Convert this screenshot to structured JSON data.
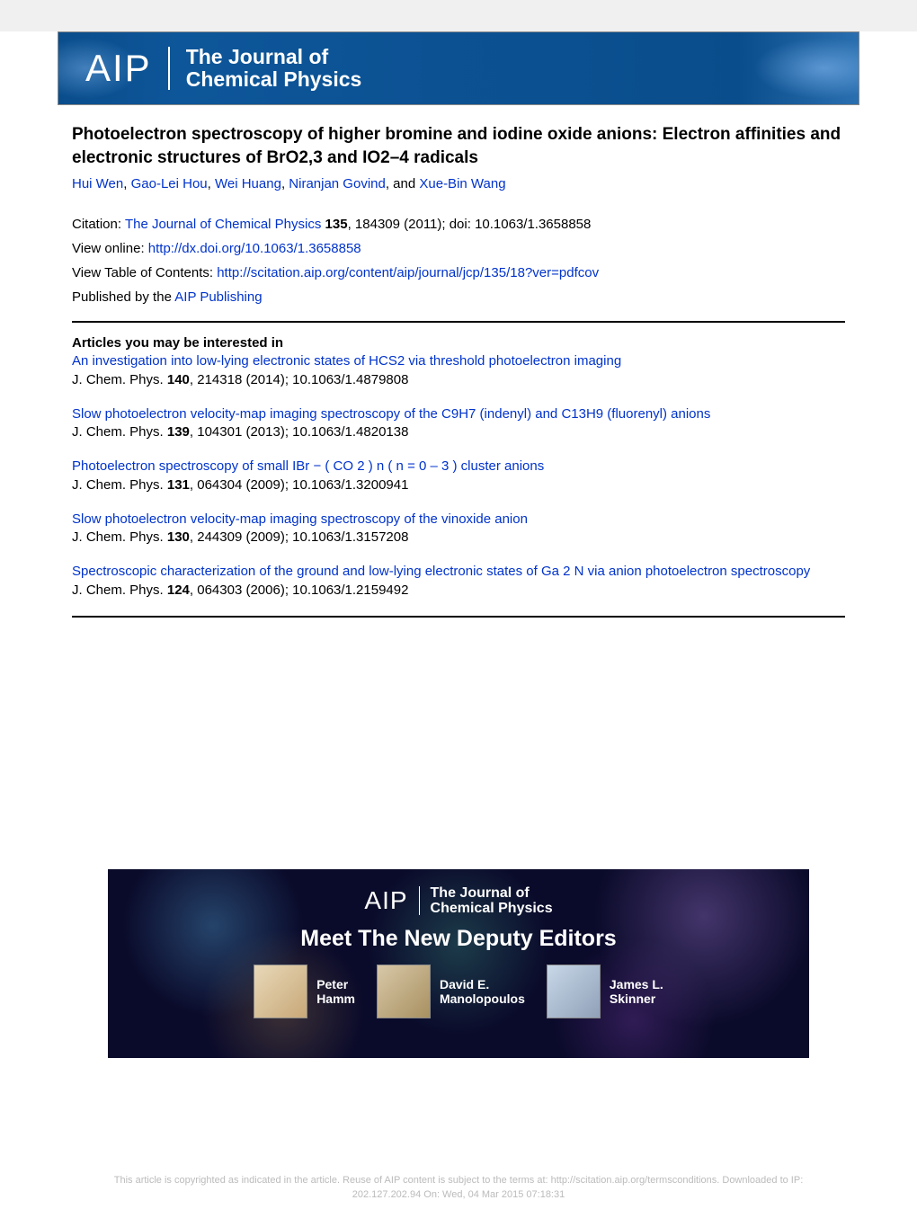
{
  "header": {
    "logo_text": "AIP",
    "journal_line1": "The Journal of",
    "journal_line2": "Chemical Physics"
  },
  "article": {
    "title": "Photoelectron spectroscopy of higher bromine and iodine oxide anions: Electron affinities and electronic structures of BrO2,3 and IO2–4 radicals",
    "authors": [
      "Hui Wen",
      "Gao-Lei Hou",
      "Wei Huang",
      "Niranjan Govind",
      "Xue-Bin Wang"
    ],
    "author_separator": ", ",
    "author_and": ", and "
  },
  "citation": {
    "label": "Citation: ",
    "journal": "The Journal of Chemical Physics",
    "volume": "135",
    "details": ", 184309 (2011); doi: 10.1063/1.3658858",
    "view_online_label": "View online: ",
    "view_online_url": "http://dx.doi.org/10.1063/1.3658858",
    "view_toc_label": "View Table of Contents: ",
    "view_toc_url": "http://scitation.aip.org/content/aip/journal/jcp/135/18?ver=pdfcov",
    "published_label": "Published by the ",
    "published_by": "AIP Publishing"
  },
  "related": {
    "heading": "Articles you may be interested in",
    "items": [
      {
        "title": "An investigation into low-lying electronic states of HCS2 via threshold photoelectron imaging",
        "cite_prefix": "J. Chem. Phys. ",
        "volume": "140",
        "cite_suffix": ", 214318 (2014); 10.1063/1.4879808"
      },
      {
        "title": "Slow photoelectron velocity-map imaging spectroscopy of the C9H7 (indenyl) and C13H9 (fluorenyl) anions",
        "cite_prefix": "J. Chem. Phys. ",
        "volume": "139",
        "cite_suffix": ", 104301 (2013); 10.1063/1.4820138"
      },
      {
        "title": "Photoelectron spectroscopy of small IBr − ( CO 2 ) n ( n = 0 – 3 ) cluster anions",
        "cite_prefix": "J. Chem. Phys. ",
        "volume": "131",
        "cite_suffix": ", 064304 (2009); 10.1063/1.3200941"
      },
      {
        "title": "Slow photoelectron velocity-map imaging spectroscopy of the vinoxide anion",
        "cite_prefix": "J. Chem. Phys. ",
        "volume": "130",
        "cite_suffix": ", 244309 (2009); 10.1063/1.3157208"
      },
      {
        "title": "Spectroscopic characterization of the ground and low-lying electronic states of Ga 2 N via anion photoelectron spectroscopy",
        "cite_prefix": "J. Chem. Phys. ",
        "volume": "124",
        "cite_suffix": ", 064303 (2006); 10.1063/1.2159492"
      }
    ]
  },
  "bottom_banner": {
    "logo_text": "AIP",
    "journal_line1": "The Journal of",
    "journal_line2": "Chemical Physics",
    "headline": "Meet The New Deputy Editors",
    "editors": [
      {
        "first": "Peter",
        "last": "Hamm"
      },
      {
        "first": "David E.",
        "last": "Manolopoulos"
      },
      {
        "first": "James L.",
        "last": "Skinner"
      }
    ]
  },
  "footer": {
    "line1": "This article is copyrighted as indicated in the article. Reuse of AIP content is subject to the terms at: http://scitation.aip.org/termsconditions. Downloaded to  IP:",
    "line2": "202.127.202.94 On: Wed, 04 Mar 2015 07:18:31"
  },
  "colors": {
    "link": "#0033cc",
    "text": "#000000",
    "banner_bg": "#0a4d8c",
    "bottom_bg": "#0a0a2a",
    "footer_text": "#bbbbbb"
  }
}
